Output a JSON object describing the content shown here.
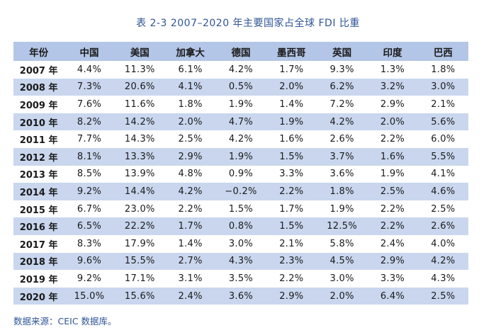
{
  "title": "表 2-3 2007–2020 年主要国家占全球 FDI 比重",
  "source": "数据来源：CEIC 数据库。",
  "table": {
    "headers": [
      "年份",
      "中国",
      "美国",
      "加拿大",
      "德国",
      "墨西哥",
      "英国",
      "印度",
      "巴西"
    ],
    "rows": [
      [
        "2007 年",
        "4.4%",
        "11.3%",
        "6.1%",
        "4.2%",
        "1.7%",
        "9.3%",
        "1.3%",
        "1.8%"
      ],
      [
        "2008 年",
        "7.3%",
        "20.6%",
        "4.1%",
        "0.5%",
        "2.0%",
        "6.2%",
        "3.2%",
        "3.0%"
      ],
      [
        "2009 年",
        "7.6%",
        "11.6%",
        "1.8%",
        "1.9%",
        "1.4%",
        "7.2%",
        "2.9%",
        "2.1%"
      ],
      [
        "2010 年",
        "8.2%",
        "14.2%",
        "2.0%",
        "4.7%",
        "1.9%",
        "4.2%",
        "2.0%",
        "5.6%"
      ],
      [
        "2011 年",
        "7.7%",
        "14.3%",
        "2.5%",
        "4.2%",
        "1.6%",
        "2.6%",
        "2.2%",
        "6.0%"
      ],
      [
        "2012 年",
        "8.1%",
        "13.3%",
        "2.9%",
        "1.9%",
        "1.5%",
        "3.7%",
        "1.6%",
        "5.5%"
      ],
      [
        "2013 年",
        "8.5%",
        "13.9%",
        "4.8%",
        "0.9%",
        "3.3%",
        "3.6%",
        "1.9%",
        "4.1%"
      ],
      [
        "2014 年",
        "9.2%",
        "14.4%",
        "4.2%",
        "−0.2%",
        "2.2%",
        "1.8%",
        "2.5%",
        "4.6%"
      ],
      [
        "2015 年",
        "6.7%",
        "23.0%",
        "2.2%",
        "1.5%",
        "1.7%",
        "1.9%",
        "2.2%",
        "2.5%"
      ],
      [
        "2016 年",
        "6.5%",
        "22.2%",
        "1.7%",
        "0.8%",
        "1.5%",
        "12.5%",
        "2.2%",
        "2.6%"
      ],
      [
        "2017 年",
        "8.3%",
        "17.9%",
        "1.4%",
        "3.0%",
        "2.1%",
        "5.8%",
        "2.4%",
        "4.0%"
      ],
      [
        "2018 年",
        "9.6%",
        "15.5%",
        "2.7%",
        "4.3%",
        "2.3%",
        "4.5%",
        "2.9%",
        "4.2%"
      ],
      [
        "2019 年",
        "9.2%",
        "17.1%",
        "3.1%",
        "3.5%",
        "2.2%",
        "3.0%",
        "3.3%",
        "4.3%"
      ],
      [
        "2020 年",
        "15.0%",
        "15.6%",
        "2.4%",
        "3.6%",
        "2.9%",
        "2.0%",
        "6.4%",
        "2.5%"
      ]
    ]
  }
}
